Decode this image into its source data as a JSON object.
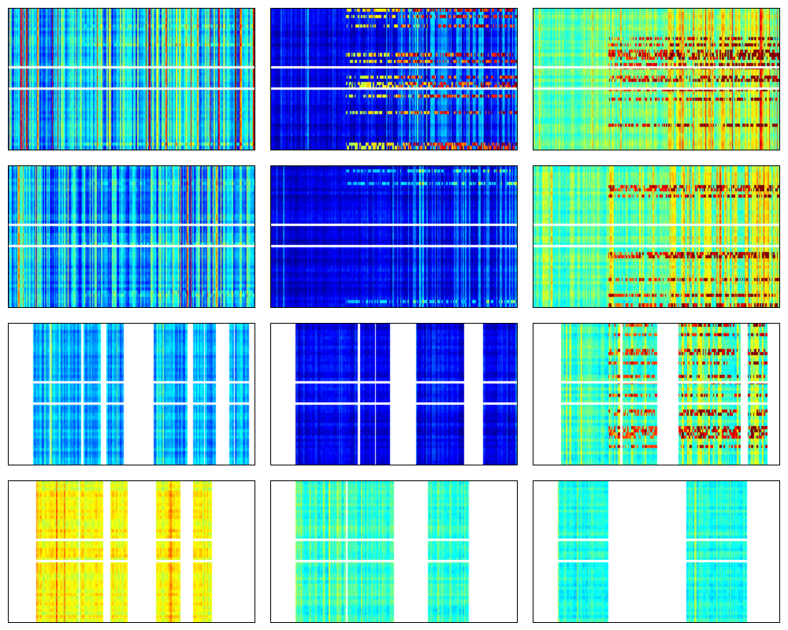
{
  "figure": {
    "rows": 4,
    "cols": 3,
    "colormap": "jet",
    "background": "#ffffff",
    "frame_color": "#000000"
  },
  "chart_data": [
    {
      "type": "heatmap",
      "row": 1,
      "col": 1,
      "seed": 11,
      "level": 0.33,
      "stripe_amp": 0.38,
      "late_hot_cols": 0.15,
      "hot_rows": 0.1,
      "hot_amp": 0.12,
      "noise": 0.05,
      "blank_columns": []
    },
    {
      "type": "heatmap",
      "row": 1,
      "col": 2,
      "seed": 23,
      "level": 0.1,
      "stripe_amp": 0.12,
      "late_hot_cols": 0.45,
      "hot_rows": 0.3,
      "hot_amp": 0.6,
      "noise": 0.04,
      "blank_columns": []
    },
    {
      "type": "heatmap",
      "row": 1,
      "col": 3,
      "seed": 37,
      "level": 0.48,
      "stripe_amp": 0.14,
      "late_hot_cols": 0.5,
      "hot_rows": 0.35,
      "hot_amp": 0.45,
      "noise": 0.06,
      "blank_columns": []
    },
    {
      "type": "heatmap",
      "row": 2,
      "col": 1,
      "seed": 41,
      "level": 0.3,
      "stripe_amp": 0.36,
      "late_hot_cols": 0.1,
      "hot_rows": 0.05,
      "hot_amp": 0.1,
      "noise": 0.05,
      "blank_columns": []
    },
    {
      "type": "heatmap",
      "row": 2,
      "col": 2,
      "seed": 53,
      "level": 0.1,
      "stripe_amp": 0.1,
      "late_hot_cols": 0.3,
      "hot_rows": 0.1,
      "hot_amp": 0.25,
      "noise": 0.04,
      "blank_columns": []
    },
    {
      "type": "heatmap",
      "row": 2,
      "col": 3,
      "seed": 67,
      "level": 0.46,
      "stripe_amp": 0.14,
      "late_hot_cols": 0.5,
      "hot_rows": 0.25,
      "hot_amp": 0.45,
      "noise": 0.06,
      "blank_columns": []
    },
    {
      "type": "heatmap",
      "row": 3,
      "col": 1,
      "seed": 71,
      "level": 0.28,
      "stripe_amp": 0.15,
      "late_hot_cols": 0.0,
      "hot_rows": 0.0,
      "hot_amp": 0.0,
      "noise": 0.04,
      "blank_columns": [
        [
          0.0,
          0.1
        ],
        [
          0.29,
          0.3
        ],
        [
          0.37,
          0.4
        ],
        [
          0.46,
          0.59
        ],
        [
          0.72,
          0.75
        ],
        [
          0.84,
          0.9
        ],
        [
          0.97,
          1.0
        ]
      ]
    },
    {
      "type": "heatmap",
      "row": 3,
      "col": 2,
      "seed": 83,
      "level": 0.1,
      "stripe_amp": 0.1,
      "late_hot_cols": 0.0,
      "hot_rows": 0.0,
      "hot_amp": 0.0,
      "noise": 0.04,
      "blank_columns": [
        [
          0.0,
          0.1
        ],
        [
          0.35,
          0.36
        ],
        [
          0.48,
          0.59
        ],
        [
          0.78,
          0.86
        ]
      ]
    },
    {
      "type": "heatmap",
      "row": 3,
      "col": 3,
      "seed": 97,
      "level": 0.42,
      "stripe_amp": 0.12,
      "late_hot_cols": 0.3,
      "hot_rows": 0.25,
      "hot_amp": 0.45,
      "noise": 0.05,
      "blank_columns": [
        [
          0.0,
          0.11
        ],
        [
          0.5,
          0.59
        ],
        [
          0.84,
          0.87
        ],
        [
          0.95,
          1.0
        ]
      ]
    },
    {
      "type": "heatmap",
      "row": 4,
      "col": 1,
      "seed": 101,
      "level": 0.62,
      "stripe_amp": 0.1,
      "late_hot_cols": 0.0,
      "hot_rows": 0.0,
      "hot_amp": 0.0,
      "noise": 0.05,
      "blank_columns": [
        [
          0.0,
          0.11
        ],
        [
          0.28,
          0.29
        ],
        [
          0.38,
          0.41
        ],
        [
          0.48,
          0.6
        ],
        [
          0.7,
          0.75
        ],
        [
          0.82,
          1.0
        ]
      ]
    },
    {
      "type": "heatmap",
      "row": 4,
      "col": 2,
      "seed": 113,
      "level": 0.42,
      "stripe_amp": 0.12,
      "late_hot_cols": 0.0,
      "hot_rows": 0.0,
      "hot_amp": 0.0,
      "noise": 0.05,
      "blank_columns": [
        [
          0.0,
          0.1
        ],
        [
          0.3,
          0.31
        ],
        [
          0.5,
          0.64
        ],
        [
          0.8,
          1.0
        ]
      ]
    },
    {
      "type": "heatmap",
      "row": 4,
      "col": 3,
      "seed": 127,
      "level": 0.4,
      "stripe_amp": 0.1,
      "late_hot_cols": 0.0,
      "hot_rows": 0.0,
      "hot_amp": 0.0,
      "noise": 0.05,
      "blank_columns": [
        [
          0.0,
          0.1
        ],
        [
          0.3,
          0.62
        ],
        [
          0.86,
          1.0
        ]
      ]
    }
  ]
}
